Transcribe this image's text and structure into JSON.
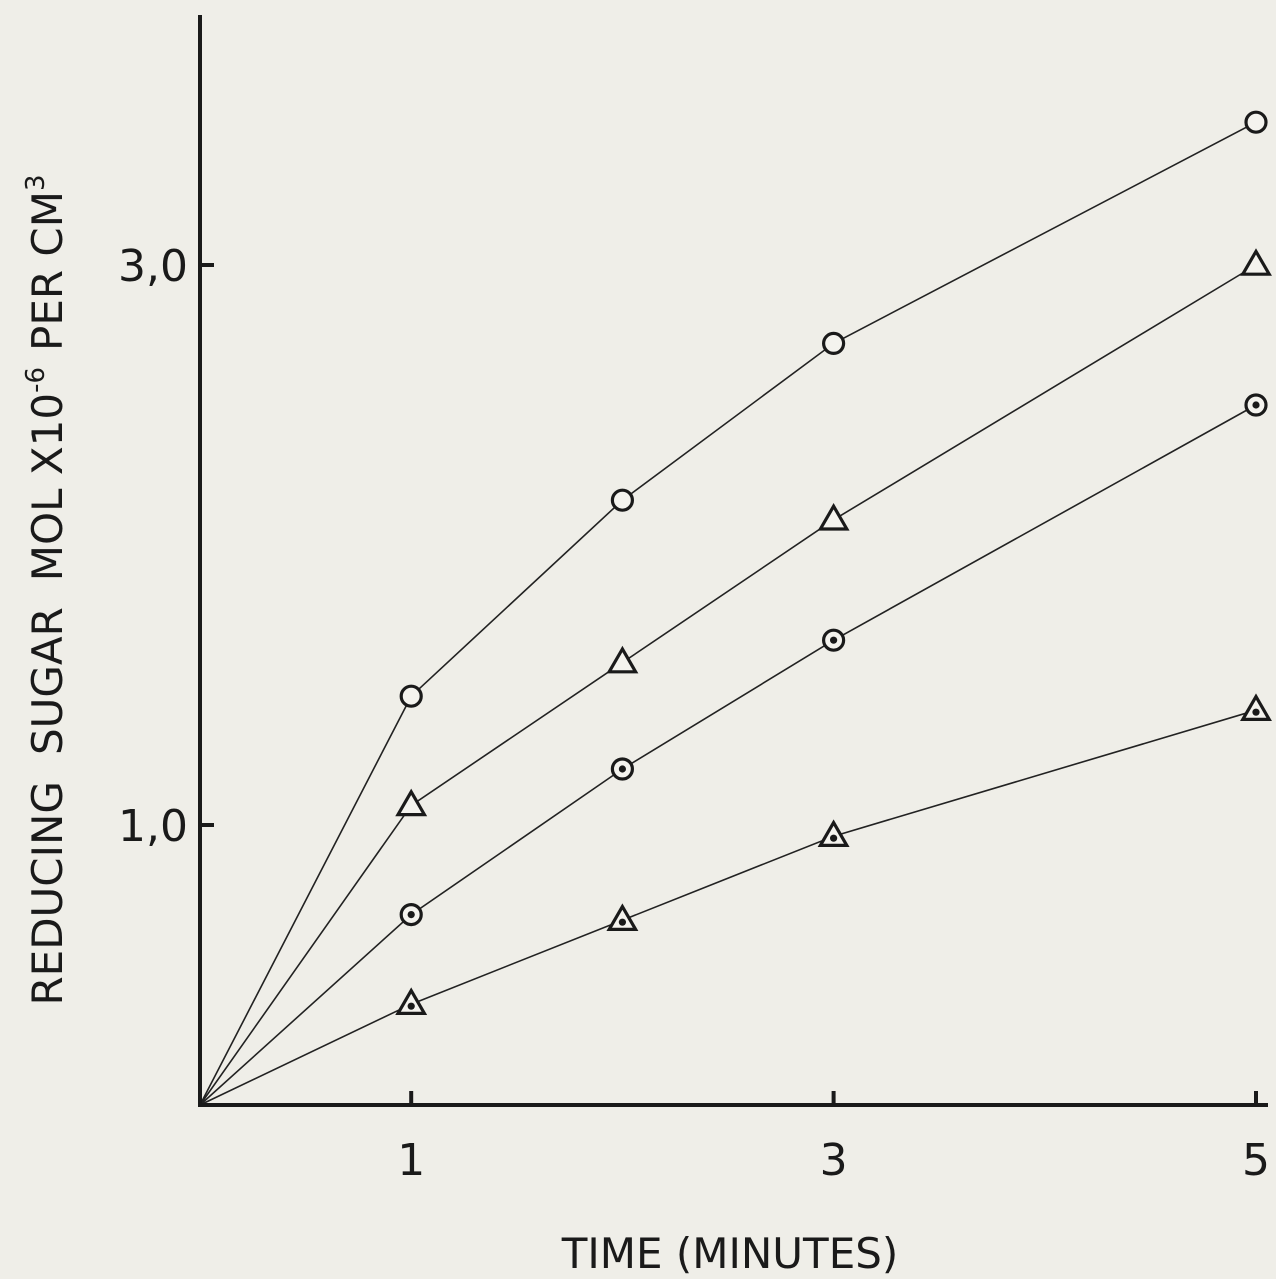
{
  "chart_data": {
    "type": "line",
    "xlabel": "TIME (MINUTES)",
    "ylabel": {
      "word1": "REDUCING",
      "word2": "SUGAR",
      "word3": "MOL X10",
      "exp1": "-6",
      "word4": "PER CM",
      "exp2": "3"
    },
    "xlim": [
      0,
      5
    ],
    "ylim": [
      0,
      3.6
    ],
    "x_ticks": [
      {
        "value": 1,
        "label": "1"
      },
      {
        "value": 3,
        "label": "3"
      },
      {
        "value": 5,
        "label": "5"
      }
    ],
    "y_ticks": [
      {
        "value": 1.0,
        "label": "1,0"
      },
      {
        "value": 3.0,
        "label": "3,0"
      }
    ],
    "grid": false,
    "legend": "none",
    "series": [
      {
        "marker": "open-circle",
        "x": [
          0,
          1,
          2,
          3,
          5
        ],
        "y": [
          0,
          1.46,
          2.16,
          2.72,
          3.51
        ]
      },
      {
        "marker": "open-triangle",
        "x": [
          0,
          1,
          2,
          3,
          5
        ],
        "y": [
          0,
          1.07,
          1.58,
          2.09,
          3.0
        ]
      },
      {
        "marker": "dotted-circle",
        "x": [
          0,
          1,
          2,
          3,
          5
        ],
        "y": [
          0,
          0.68,
          1.2,
          1.66,
          2.5
        ]
      },
      {
        "marker": "dotted-triangle",
        "x": [
          0,
          1,
          2,
          3,
          5
        ],
        "y": [
          0,
          0.36,
          0.66,
          0.96,
          1.41
        ]
      }
    ]
  }
}
